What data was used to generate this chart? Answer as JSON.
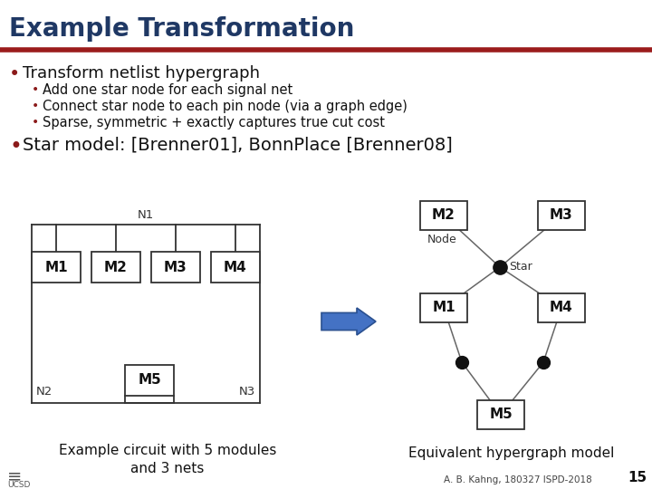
{
  "title": "Example Transformation",
  "title_color": "#1f3864",
  "red_line_color": "#9b1c1c",
  "bg_color": "#ffffff",
  "bullet_color": "#8b1a1a",
  "bullet1": "Transform netlist hypergraph",
  "sub_bullets": [
    "Add one star node for each signal net",
    "Connect star node to each pin node (via a graph edge)",
    "Sparse, symmetric + exactly captures true cut cost"
  ],
  "bullet2": "Star model: [Brenner01], BonnPlace [Brenner08]",
  "caption_left": "Example circuit with 5 modules\nand 3 nets",
  "caption_right": "Equivalent hypergraph model",
  "footer": "A. B. Kahng, 180327 ISPD-2018",
  "page_num": "15",
  "box_color": "#ffffff",
  "box_edge_color": "#333333",
  "node_color": "#111111",
  "line_color": "#666666",
  "left_line_color": "#333333",
  "arrow_color": "#4472c4",
  "arrow_edge": "#2a5090"
}
